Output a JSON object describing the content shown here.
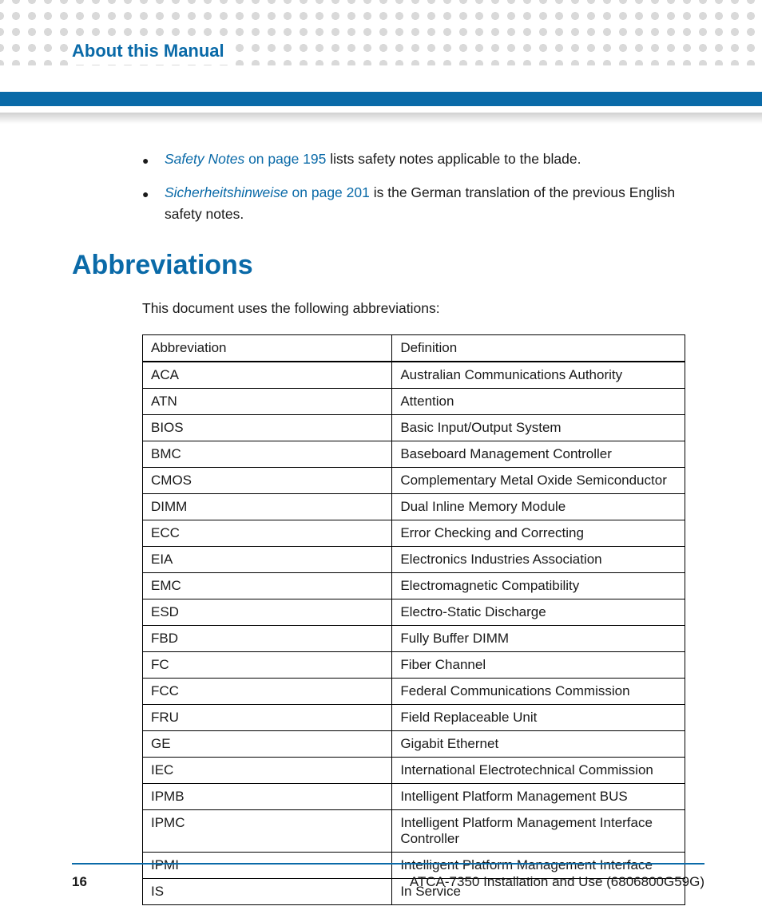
{
  "header": {
    "title": "About this Manual"
  },
  "colors": {
    "brand_blue": "#0a6aa8",
    "dot_gray": "#d9d9d9",
    "text": "#1a1a1a",
    "grad_top": "#d0d0d0",
    "bg": "#ffffff"
  },
  "bullets": [
    {
      "link_italic": "Safety Notes",
      "link_rest": " on page 195",
      "text_after": " lists safety notes applicable to the blade."
    },
    {
      "link_italic": "Sicherheitshinweise",
      "link_rest": " on page 201",
      "text_after": " is the German translation of the previous English safety notes."
    }
  ],
  "section": {
    "heading": "Abbreviations",
    "intro": "This document uses the following abbreviations:"
  },
  "table": {
    "columns": [
      "Abbreviation",
      "Definition"
    ],
    "rows": [
      [
        "ACA",
        "Australian Communications Authority"
      ],
      [
        "ATN",
        "Attention"
      ],
      [
        "BIOS",
        "Basic Input/Output System"
      ],
      [
        "BMC",
        "Baseboard Management Controller"
      ],
      [
        "CMOS",
        "Complementary Metal Oxide Semiconductor"
      ],
      [
        "DIMM",
        "Dual Inline Memory Module"
      ],
      [
        "ECC",
        "Error Checking and Correcting"
      ],
      [
        "EIA",
        "Electronics Industries Association"
      ],
      [
        "EMC",
        "Electromagnetic Compatibility"
      ],
      [
        "ESD",
        "Electro-Static Discharge"
      ],
      [
        "FBD",
        "Fully Buffer DIMM"
      ],
      [
        "FC",
        "Fiber Channel"
      ],
      [
        "FCC",
        "Federal Communications Commission"
      ],
      [
        "FRU",
        "Field Replaceable Unit"
      ],
      [
        "GE",
        "Gigabit Ethernet"
      ],
      [
        "IEC",
        "International Electrotechnical Commission"
      ],
      [
        "IPMB",
        "Intelligent Platform Management BUS"
      ],
      [
        "IPMC",
        "Intelligent Platform Management Interface Controller"
      ],
      [
        "IPMI",
        "Intelligent Platform Management Interface"
      ],
      [
        "IS",
        "In Service"
      ]
    ]
  },
  "footer": {
    "page": "16",
    "doc": "ATCA-7350 Installation and Use (6806800G59G)"
  }
}
